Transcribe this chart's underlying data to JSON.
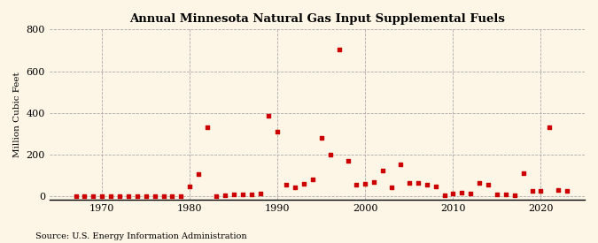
{
  "title": "Annual Minnesota Natural Gas Input Supplemental Fuels",
  "ylabel": "Million Cubic Feet",
  "source": "Source: U.S. Energy Information Administration",
  "background_color": "#fdf5e6",
  "marker_color": "#cc0000",
  "xlim": [
    1964,
    2025
  ],
  "ylim": [
    -15,
    800
  ],
  "yticks": [
    0,
    200,
    400,
    600,
    800
  ],
  "xticks": [
    1970,
    1980,
    1990,
    2000,
    2010,
    2020
  ],
  "years": [
    1967,
    1968,
    1969,
    1970,
    1971,
    1972,
    1973,
    1974,
    1975,
    1976,
    1977,
    1978,
    1979,
    1980,
    1981,
    1982,
    1983,
    1984,
    1985,
    1986,
    1987,
    1988,
    1989,
    1990,
    1991,
    1992,
    1993,
    1994,
    1995,
    1996,
    1997,
    1998,
    1999,
    2000,
    2001,
    2002,
    2003,
    2004,
    2005,
    2006,
    2007,
    2008,
    2009,
    2010,
    2011,
    2012,
    2013,
    2014,
    2015,
    2016,
    2017,
    2018,
    2019,
    2020,
    2021,
    2022,
    2023
  ],
  "values": [
    2,
    1,
    1,
    1,
    1,
    1,
    1,
    1,
    1,
    1,
    1,
    1,
    1,
    47,
    107,
    331,
    2,
    5,
    10,
    12,
    10,
    13,
    386,
    311,
    57,
    44,
    61,
    82,
    280,
    200,
    706,
    170,
    55,
    60,
    68,
    125,
    42,
    155,
    65,
    65,
    55,
    50,
    5,
    15,
    20,
    15,
    65,
    55,
    10,
    10,
    5,
    110,
    25,
    25,
    330,
    30,
    25
  ]
}
